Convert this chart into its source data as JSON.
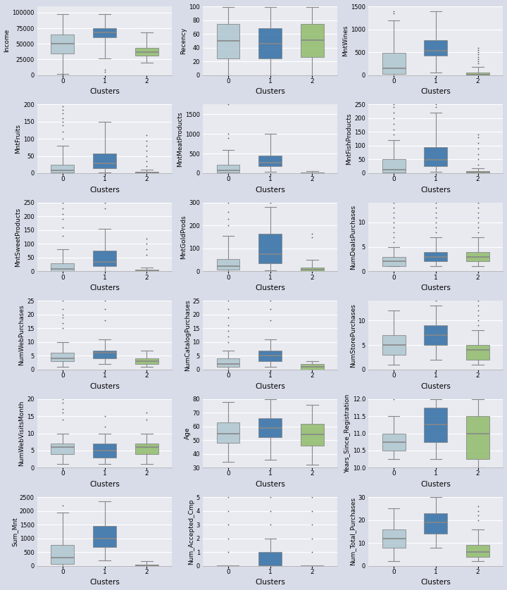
{
  "cluster_colors": [
    "#aec6cf",
    "#2e6da4",
    "#8fbc6a"
  ],
  "cluster_labels": [
    0,
    1,
    2
  ],
  "xlabel": "Clusters",
  "fig_bg": "#d8dce8",
  "ax_bg": "#e8eaf0",
  "subplots": [
    {
      "ylabel": "Income",
      "data": {
        "0": {
          "whislo": 1730,
          "q1": 35000,
          "med": 50000,
          "q3": 65000,
          "whishi": 98000,
          "fliers": [
            0,
            1000
          ]
        },
        "1": {
          "whislo": 27000,
          "q1": 60000,
          "med": 68000,
          "q3": 75000,
          "whishi": 98000,
          "fliers": [
            5000,
            8000
          ]
        },
        "2": {
          "whislo": 20000,
          "q1": 31000,
          "med": 37000,
          "q3": 44000,
          "whishi": 68000,
          "fliers": []
        }
      },
      "ylim": [
        0,
        110000
      ]
    },
    {
      "ylabel": "Recency",
      "data": {
        "0": {
          "whislo": 0,
          "q1": 24,
          "med": 50,
          "q3": 74,
          "whishi": 99,
          "fliers": []
        },
        "1": {
          "whislo": 0,
          "q1": 24,
          "med": 46,
          "q3": 68,
          "whishi": 99,
          "fliers": []
        },
        "2": {
          "whislo": 0,
          "q1": 26,
          "med": 51,
          "q3": 74,
          "whishi": 99,
          "fliers": []
        }
      },
      "ylim": [
        0,
        100
      ]
    },
    {
      "ylabel": "MntWines",
      "data": {
        "0": {
          "whislo": 0,
          "q1": 20,
          "med": 150,
          "q3": 490,
          "whishi": 1200,
          "fliers": [
            1350,
            1400
          ]
        },
        "1": {
          "whislo": 50,
          "q1": 420,
          "med": 530,
          "q3": 760,
          "whishi": 1400,
          "fliers": []
        },
        "2": {
          "whislo": 0,
          "q1": 3,
          "med": 8,
          "q3": 50,
          "whishi": 175,
          "fliers": [
            250,
            300,
            350,
            400,
            450,
            500,
            550,
            600
          ]
        }
      },
      "ylim": [
        0,
        1500
      ]
    },
    {
      "ylabel": "MntFruits",
      "data": {
        "0": {
          "whislo": 0,
          "q1": 2,
          "med": 8,
          "q3": 25,
          "whishi": 80,
          "fliers": [
            100,
            120,
            140,
            150,
            160,
            175,
            185,
            195
          ]
        },
        "1": {
          "whislo": 1,
          "q1": 15,
          "med": 28,
          "q3": 58,
          "whishi": 150,
          "fliers": []
        },
        "2": {
          "whislo": 0,
          "q1": 1,
          "med": 2,
          "q3": 4,
          "whishi": 10,
          "fliers": [
            20,
            35,
            50,
            65,
            80,
            95,
            110
          ]
        }
      },
      "ylim": [
        0,
        200
      ]
    },
    {
      "ylabel": "MntMeatProducts",
      "data": {
        "0": {
          "whislo": 0,
          "q1": 20,
          "med": 65,
          "q3": 220,
          "whishi": 600,
          "fliers": [
            900,
            1000,
            1750
          ]
        },
        "1": {
          "whislo": 30,
          "q1": 185,
          "med": 270,
          "q3": 450,
          "whishi": 1000,
          "fliers": []
        },
        "2": {
          "whislo": 0,
          "q1": 2,
          "med": 5,
          "q3": 18,
          "fliers": [],
          "whishi": 50
        }
      },
      "ylim": [
        0,
        1750
      ]
    },
    {
      "ylabel": "MntFishProducts",
      "data": {
        "0": {
          "whislo": 0,
          "q1": 3,
          "med": 12,
          "q3": 50,
          "whishi": 120,
          "fliers": [
            140,
            160,
            180,
            200,
            220,
            240,
            250
          ]
        },
        "1": {
          "whislo": 5,
          "q1": 25,
          "med": 48,
          "q3": 95,
          "whishi": 220,
          "fliers": [
            240,
            250
          ]
        },
        "2": {
          "whislo": 0,
          "q1": 1,
          "med": 3,
          "q3": 7,
          "whishi": 18,
          "fliers": [
            30,
            50,
            70,
            90,
            110,
            130,
            140
          ]
        }
      },
      "ylim": [
        0,
        250
      ]
    },
    {
      "ylabel": "MntSweetProducts",
      "data": {
        "0": {
          "whislo": 0,
          "q1": 2,
          "med": 8,
          "q3": 28,
          "whishi": 80,
          "fliers": [
            130,
            160,
            190,
            210,
            230,
            250
          ]
        },
        "1": {
          "whislo": 1,
          "q1": 18,
          "med": 35,
          "q3": 75,
          "whishi": 155,
          "fliers": [
            230,
            250
          ]
        },
        "2": {
          "whislo": 0,
          "q1": 1,
          "med": 2,
          "q3": 5,
          "whishi": 15,
          "fliers": [
            60,
            80,
            100,
            120
          ]
        }
      },
      "ylim": [
        0,
        250
      ]
    },
    {
      "ylabel": "MntGoldProds",
      "data": {
        "0": {
          "whislo": 0,
          "q1": 8,
          "med": 22,
          "q3": 55,
          "whishi": 155,
          "fliers": [
            200,
            230,
            260,
            300
          ]
        },
        "1": {
          "whislo": 5,
          "q1": 35,
          "med": 75,
          "q3": 165,
          "whishi": 280,
          "fliers": [
            300
          ]
        },
        "2": {
          "whislo": 0,
          "q1": 2,
          "med": 6,
          "q3": 18,
          "whishi": 50,
          "fliers": [
            150,
            165
          ]
        }
      },
      "ylim": [
        0,
        300
      ]
    },
    {
      "ylabel": "NumDealsPurchases",
      "data": {
        "0": {
          "whislo": 1,
          "q1": 1,
          "med": 2,
          "q3": 3,
          "whishi": 5,
          "fliers": [
            6,
            7,
            8,
            9,
            10,
            11,
            12,
            13,
            14
          ]
        },
        "1": {
          "whislo": 1,
          "q1": 2,
          "med": 3,
          "q3": 4,
          "whishi": 7,
          "fliers": [
            8,
            9,
            10,
            11,
            12,
            13,
            14
          ]
        },
        "2": {
          "whislo": 1,
          "q1": 2,
          "med": 3,
          "q3": 4,
          "whishi": 7,
          "fliers": [
            8,
            9,
            10,
            11,
            12,
            13,
            14
          ]
        }
      },
      "ylim": [
        0,
        14
      ]
    },
    {
      "ylabel": "NumWebPurchases",
      "data": {
        "0": {
          "whislo": 1,
          "q1": 3,
          "med": 4,
          "q3": 6,
          "whishi": 10,
          "fliers": [
            15,
            17,
            19,
            20,
            22,
            25
          ]
        },
        "1": {
          "whislo": 2,
          "q1": 4,
          "med": 6,
          "q3": 7,
          "whishi": 11,
          "fliers": [
            18,
            22,
            25
          ]
        },
        "2": {
          "whislo": 1,
          "q1": 2,
          "med": 3,
          "q3": 4,
          "whishi": 7,
          "fliers": []
        }
      },
      "ylim": [
        0,
        25
      ]
    },
    {
      "ylabel": "NumCatalogPurchases",
      "data": {
        "0": {
          "whislo": 0,
          "q1": 1,
          "med": 2,
          "q3": 4,
          "whishi": 7,
          "fliers": [
            10,
            12,
            14,
            16,
            19,
            22,
            25
          ]
        },
        "1": {
          "whislo": 1,
          "q1": 3,
          "med": 5,
          "q3": 7,
          "whishi": 11,
          "fliers": [
            18,
            22,
            25
          ]
        },
        "2": {
          "whislo": 0,
          "q1": 0,
          "med": 1,
          "q3": 2,
          "whishi": 3,
          "fliers": []
        }
      },
      "ylim": [
        0,
        25
      ]
    },
    {
      "ylabel": "NumStorePurchases",
      "data": {
        "0": {
          "whislo": 1,
          "q1": 3,
          "med": 5,
          "q3": 7,
          "whishi": 12,
          "fliers": []
        },
        "1": {
          "whislo": 2,
          "q1": 5,
          "med": 7,
          "q3": 9,
          "whishi": 13,
          "fliers": [
            14
          ]
        },
        "2": {
          "whislo": 1,
          "q1": 2,
          "med": 4,
          "q3": 5,
          "whishi": 8,
          "fliers": [
            9,
            10,
            11,
            12,
            13,
            14
          ]
        }
      },
      "ylim": [
        0,
        14
      ]
    },
    {
      "ylabel": "NumWebVisitsMonth",
      "data": {
        "0": {
          "whislo": 1,
          "q1": 4,
          "med": 6,
          "q3": 7,
          "whishi": 10,
          "fliers": [
            14,
            16,
            17,
            19,
            20
          ]
        },
        "1": {
          "whislo": 1,
          "q1": 3,
          "med": 5,
          "q3": 7,
          "whishi": 10,
          "fliers": [
            12,
            15
          ]
        },
        "2": {
          "whislo": 1,
          "q1": 4,
          "med": 6,
          "q3": 7,
          "whishi": 10,
          "fliers": [
            14,
            16
          ]
        }
      },
      "ylim": [
        0,
        20
      ]
    },
    {
      "ylabel": "Age",
      "data": {
        "0": {
          "whislo": 34,
          "q1": 48,
          "med": 55,
          "q3": 63,
          "whishi": 78,
          "fliers": []
        },
        "1": {
          "whislo": 36,
          "q1": 52,
          "med": 59,
          "q3": 66,
          "whishi": 80,
          "fliers": []
        },
        "2": {
          "whislo": 32,
          "q1": 46,
          "med": 54,
          "q3": 62,
          "whishi": 76,
          "fliers": []
        }
      },
      "ylim": [
        30,
        80
      ]
    },
    {
      "ylabel": "Years_Since_Registration",
      "data": {
        "0": {
          "whislo": 10.25,
          "q1": 10.5,
          "med": 10.75,
          "q3": 11.0,
          "whishi": 11.5,
          "fliers": [
            12.0
          ]
        },
        "1": {
          "whislo": 10.25,
          "q1": 10.75,
          "med": 11.25,
          "q3": 11.75,
          "whishi": 12.0,
          "fliers": []
        },
        "2": {
          "whislo": 10.0,
          "q1": 10.25,
          "med": 11.0,
          "q3": 11.5,
          "whishi": 12.0,
          "fliers": []
        }
      },
      "ylim": [
        10.0,
        12.0
      ]
    },
    {
      "ylabel": "Sum_Mnt",
      "data": {
        "0": {
          "whislo": 2,
          "q1": 65,
          "med": 310,
          "q3": 760,
          "whishi": 1950,
          "fliers": [
            2200
          ]
        },
        "1": {
          "whislo": 200,
          "q1": 680,
          "med": 1000,
          "q3": 1450,
          "whishi": 2350,
          "fliers": []
        },
        "2": {
          "whislo": 0,
          "q1": 8,
          "med": 18,
          "q3": 55,
          "whishi": 175,
          "fliers": []
        }
      },
      "ylim": [
        0,
        2500
      ]
    },
    {
      "ylabel": "Num_Accepted_Cmp",
      "data": {
        "0": {
          "whislo": 0,
          "q1": 0,
          "med": 0,
          "q3": 0,
          "whishi": 0,
          "fliers": [
            1,
            2,
            3,
            4,
            5
          ]
        },
        "1": {
          "whislo": 0,
          "q1": 0,
          "med": 0,
          "q3": 1,
          "whishi": 2,
          "fliers": [
            3,
            4,
            5
          ]
        },
        "2": {
          "whislo": 0,
          "q1": 0,
          "med": 0,
          "q3": 0,
          "whishi": 0,
          "fliers": [
            1,
            2,
            3,
            4,
            5
          ]
        }
      },
      "ylim": [
        0,
        5
      ]
    },
    {
      "ylabel": "Num_Total_Purchases",
      "data": {
        "0": {
          "whislo": 2,
          "q1": 8,
          "med": 12,
          "q3": 16,
          "whishi": 25,
          "fliers": []
        },
        "1": {
          "whislo": 8,
          "q1": 14,
          "med": 19,
          "q3": 23,
          "whishi": 30,
          "fliers": []
        },
        "2": {
          "whislo": 2,
          "q1": 4,
          "med": 6,
          "q3": 9,
          "whishi": 16,
          "fliers": [
            20,
            22,
            24,
            26
          ]
        }
      },
      "ylim": [
        0,
        30
      ]
    }
  ]
}
